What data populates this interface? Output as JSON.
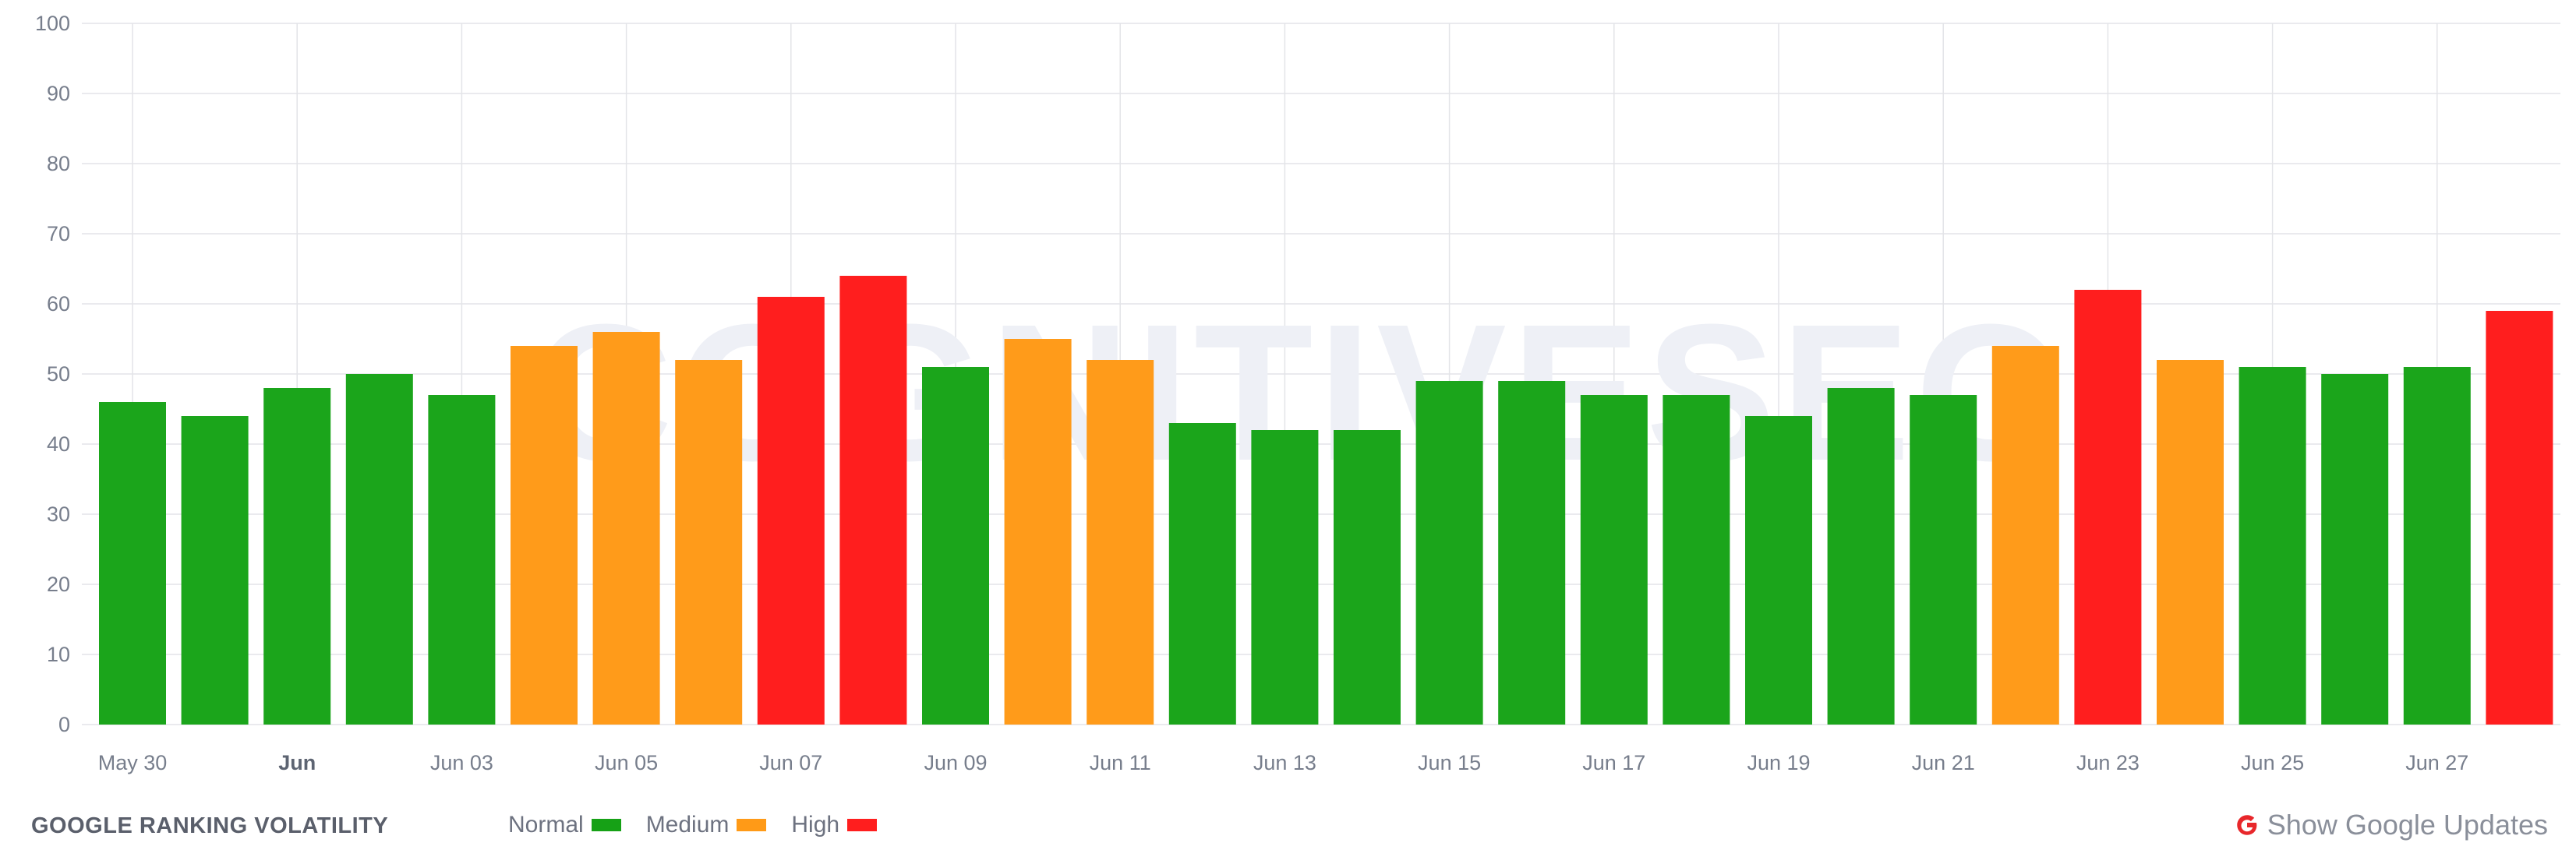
{
  "watermark": "COGNITIVESEO",
  "footer": {
    "title": "GOOGLE RANKING VOLATILITY",
    "legend": [
      {
        "label": "Normal",
        "color": "#16a116"
      },
      {
        "label": "Medium",
        "color": "#ff9a17"
      },
      {
        "label": "High",
        "color": "#ff1e1e"
      }
    ],
    "show_updates_label": "Show Google Updates",
    "show_updates_icon": "google-g-icon"
  },
  "colors": {
    "normal": "#1ba51b",
    "medium": "#ff9b1a",
    "high": "#ff1e1e",
    "grid": "#e3e4e8"
  },
  "chart_data": {
    "type": "bar",
    "title": "",
    "xlabel": "",
    "ylabel": "",
    "ylim": [
      0,
      100
    ],
    "yticks": [
      0,
      10,
      20,
      30,
      40,
      50,
      60,
      70,
      80,
      90,
      100
    ],
    "grid": true,
    "x_tick_labels": [
      {
        "label": "May 30",
        "index": 0,
        "bold": false
      },
      {
        "label": "Jun",
        "index": 2,
        "bold": true
      },
      {
        "label": "Jun 03",
        "index": 4,
        "bold": false
      },
      {
        "label": "Jun 05",
        "index": 6,
        "bold": false
      },
      {
        "label": "Jun 07",
        "index": 8,
        "bold": false
      },
      {
        "label": "Jun 09",
        "index": 10,
        "bold": false
      },
      {
        "label": "Jun 11",
        "index": 12,
        "bold": false
      },
      {
        "label": "Jun 13",
        "index": 14,
        "bold": false
      },
      {
        "label": "Jun 15",
        "index": 16,
        "bold": false
      },
      {
        "label": "Jun 17",
        "index": 18,
        "bold": false
      },
      {
        "label": "Jun 19",
        "index": 20,
        "bold": false
      },
      {
        "label": "Jun 21",
        "index": 22,
        "bold": false
      },
      {
        "label": "Jun 23",
        "index": 24,
        "bold": false
      },
      {
        "label": "Jun 25",
        "index": 26,
        "bold": false
      },
      {
        "label": "Jun 27",
        "index": 28,
        "bold": false
      }
    ],
    "categories": [
      "May 30",
      "May 31",
      "Jun 01",
      "Jun 02",
      "Jun 03",
      "Jun 04",
      "Jun 05",
      "Jun 06",
      "Jun 07",
      "Jun 08",
      "Jun 09",
      "Jun 10",
      "Jun 11",
      "Jun 12",
      "Jun 13",
      "Jun 14",
      "Jun 15",
      "Jun 16",
      "Jun 17",
      "Jun 18",
      "Jun 19",
      "Jun 20",
      "Jun 21",
      "Jun 22",
      "Jun 23",
      "Jun 24",
      "Jun 25",
      "Jun 26",
      "Jun 27",
      "Jun 28"
    ],
    "values": [
      46,
      44,
      48,
      50,
      47,
      54,
      56,
      52,
      61,
      64,
      51,
      55,
      52,
      43,
      42,
      42,
      49,
      49,
      47,
      47,
      44,
      48,
      47,
      54,
      62,
      52,
      51,
      50,
      51,
      59
    ],
    "levels": [
      "normal",
      "normal",
      "normal",
      "normal",
      "normal",
      "medium",
      "medium",
      "medium",
      "high",
      "high",
      "normal",
      "medium",
      "medium",
      "normal",
      "normal",
      "normal",
      "normal",
      "normal",
      "normal",
      "normal",
      "normal",
      "normal",
      "normal",
      "medium",
      "high",
      "medium",
      "normal",
      "normal",
      "normal",
      "high"
    ]
  }
}
